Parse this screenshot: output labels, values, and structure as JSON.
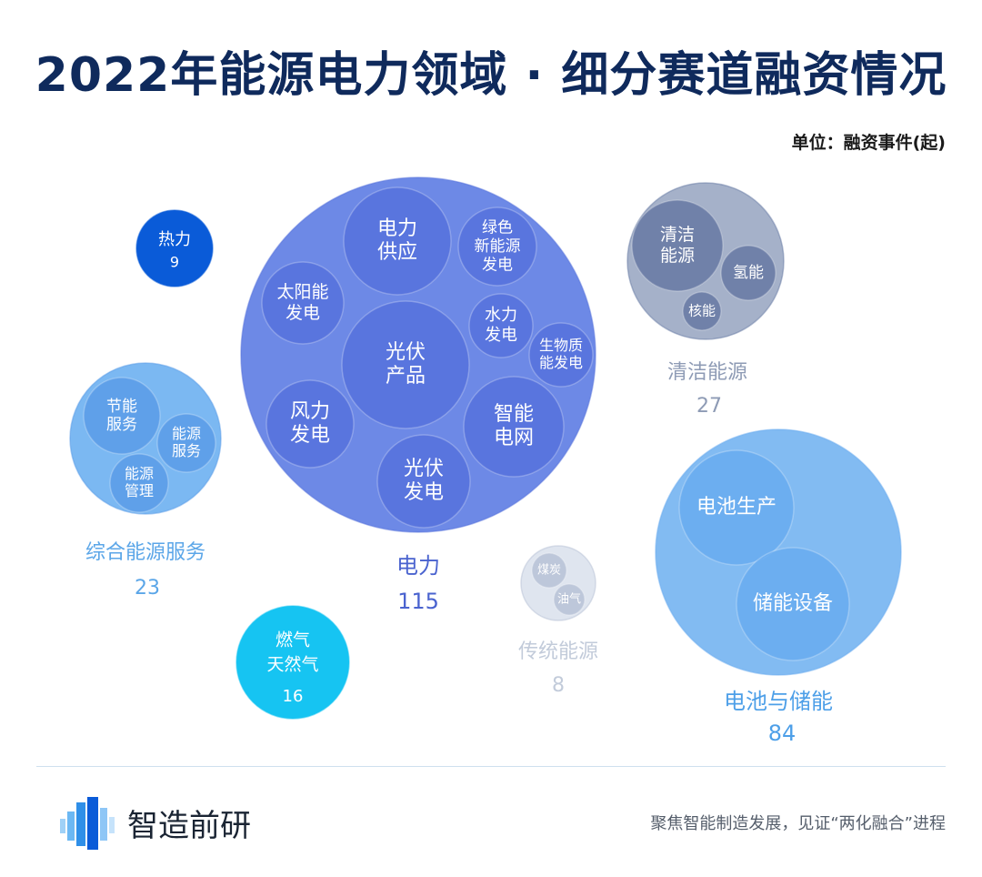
{
  "title": "2022年能源电力领域 · 细分赛道融资情况",
  "unit": "单位：融资事件(起)",
  "footer": {
    "brand": "智造前研",
    "slogan": "聚焦智能制造发展，见证“两化融合”进程"
  },
  "chart_data": {
    "type": "bubble",
    "unit": "融资事件(起)",
    "groups": [
      {
        "name": "电力",
        "value": 115,
        "color": "#6d89e6",
        "subcolor": "#5672dc",
        "labelcolor": "#4a63cf",
        "children": [
          "电力供应",
          "绿色新能源发电",
          "太阳能发电",
          "光伏产品",
          "水力发电",
          "生物质能发电",
          "风力发电",
          "智能电网",
          "光伏发电"
        ]
      },
      {
        "name": "清洁能源",
        "value": 27,
        "color": "#a5b1c9",
        "subcolor": "#6679a3",
        "labelcolor": "#8e9bb5",
        "children": [
          "清洁能源",
          "氢能",
          "核能"
        ]
      },
      {
        "name": "综合能源服务",
        "value": 23,
        "color": "#7bb8f2",
        "subcolor": "#5a9be8",
        "labelcolor": "#5ba6e8",
        "children": [
          "节能服务",
          "能源服务",
          "能源管理"
        ]
      },
      {
        "name": "热力",
        "value": 9,
        "color": "#0a5bd8",
        "labelcolor": "#ffffff",
        "children": []
      },
      {
        "name": "电池与储能",
        "value": 84,
        "color": "#82bbf2",
        "subcolor": "#69acf0",
        "labelcolor": "#4d9fe8",
        "children": [
          "电池生产",
          "储能设备"
        ]
      },
      {
        "name": "传统能源",
        "value": 8,
        "color": "#dfe5ef",
        "subcolor": "#b7c2d6",
        "labelcolor": "#c2cbda",
        "children": [
          "煤炭",
          "油气"
        ]
      },
      {
        "name": "燃气天然气",
        "value": 16,
        "color": "#16c4f2",
        "labelcolor": "#ffffff",
        "children": []
      }
    ]
  }
}
